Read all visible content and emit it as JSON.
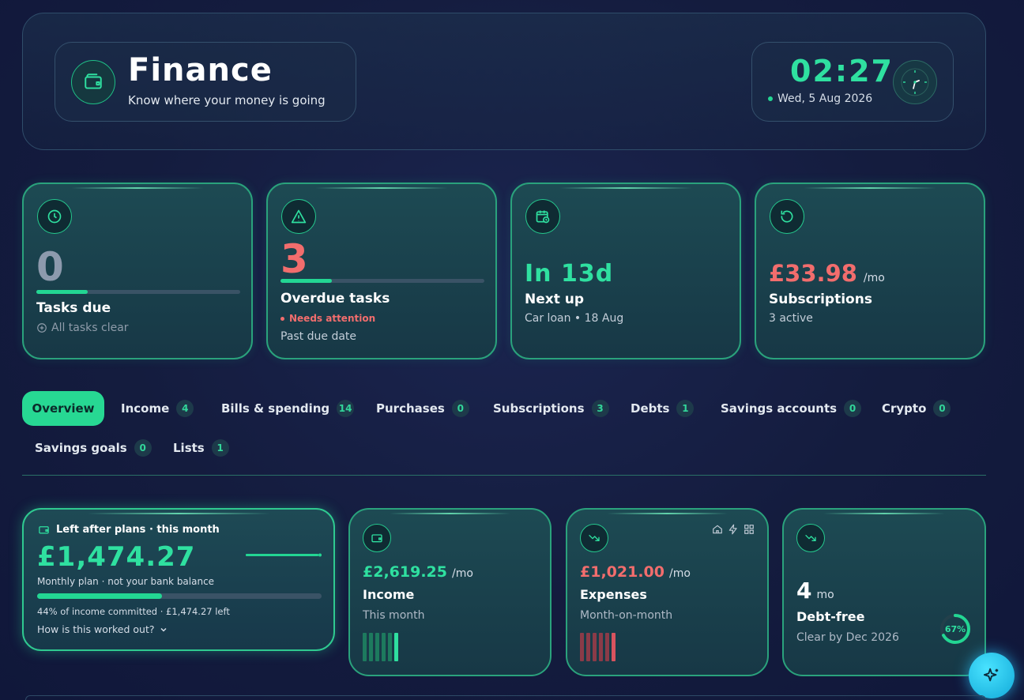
{
  "header": {
    "title": "Finance",
    "subtitle": "Know where your money is going",
    "icon": "wallet-icon",
    "clock_time": "02:27",
    "clock_date": "Wed, 5 Aug 2026"
  },
  "stats": [
    {
      "icon": "clock-icon",
      "value": "0",
      "progress": 0.25,
      "label": "Tasks due",
      "sub": "All tasks clear"
    },
    {
      "icon": "warning-icon",
      "value": "3",
      "progress": 0.25,
      "label": "Overdue tasks",
      "alert": "Needs attention",
      "sub": "Past due date"
    },
    {
      "icon": "calendar-clock-icon",
      "value": "In 13d",
      "label": "Next up",
      "sub": "Car loan • 18 Aug"
    },
    {
      "icon": "refresh-icon",
      "value": "£33.98",
      "unit": "/mo",
      "label": "Subscriptions",
      "sub": "3 active"
    }
  ],
  "tabs": [
    {
      "label": "Overview",
      "active": true
    },
    {
      "label": "Income",
      "count": "4"
    },
    {
      "label": "Bills & spending",
      "count": "14"
    },
    {
      "label": "Purchases",
      "count": "0"
    },
    {
      "label": "Subscriptions",
      "count": "3"
    },
    {
      "label": "Debts",
      "count": "1"
    },
    {
      "label": "Savings accounts",
      "count": "0"
    },
    {
      "label": "Crypto",
      "count": "0"
    },
    {
      "label": "Savings goals",
      "count": "0"
    },
    {
      "label": "Lists",
      "count": "1"
    }
  ],
  "left_after": {
    "title": "Left after plans · this month",
    "amount": "£1,474.27",
    "note": "Monthly plan · not your bank balance",
    "committed_fraction": 0.44,
    "summary": "44% of income committed · £1,474.27 left",
    "link": "How is this worked out?"
  },
  "income": {
    "amount": "£2,619.25",
    "unit": "/mo",
    "label": "Income",
    "sub": "This month"
  },
  "expenses": {
    "amount": "£1,021.00",
    "unit": "/mo",
    "label": "Expenses",
    "sub": "Month-on-month"
  },
  "debt": {
    "value": "4",
    "unit": "mo",
    "label": "Debt-free",
    "sub": "Clear by Dec 2026",
    "percent": "67%",
    "percent_value": 0.67
  },
  "colors": {
    "accent": "#27d893",
    "danger": "#f26d6d",
    "bg": "#141c3e"
  }
}
